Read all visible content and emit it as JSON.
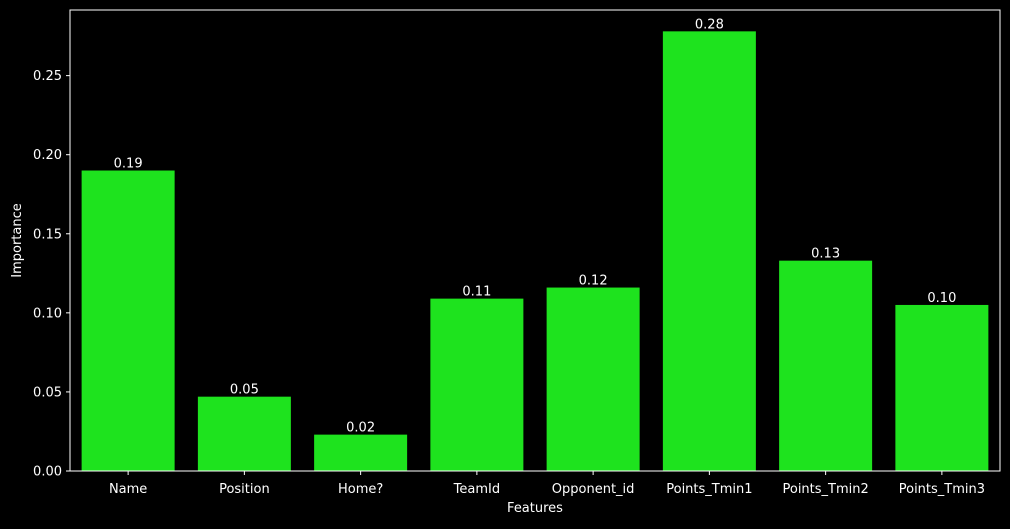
{
  "chart_data": {
    "type": "bar",
    "title": "",
    "xlabel": "Features",
    "ylabel": "Importance",
    "categories": [
      "Name",
      "Position",
      "Home?",
      "TeamId",
      "Opponent_id",
      "Points_Tmin1",
      "Points_Tmin2",
      "Points_Tmin3"
    ],
    "values": [
      0.19,
      0.047,
      0.023,
      0.109,
      0.116,
      0.278,
      0.133,
      0.105
    ],
    "value_labels": [
      "0.19",
      "0.05",
      "0.02",
      "0.11",
      "0.12",
      "0.28",
      "0.13",
      "0.10"
    ],
    "ylim": [
      0,
      0.2915
    ],
    "yticks": [
      0.0,
      0.05,
      0.1,
      0.15,
      0.2,
      0.25
    ],
    "ytick_labels": [
      "0.00",
      "0.05",
      "0.10",
      "0.15",
      "0.20",
      "0.25"
    ],
    "grid": false,
    "legend": "none"
  },
  "colors": {
    "background": "#000000",
    "bar": "#1ee31e",
    "axes": "#ffffff",
    "text": "#ffffff"
  }
}
